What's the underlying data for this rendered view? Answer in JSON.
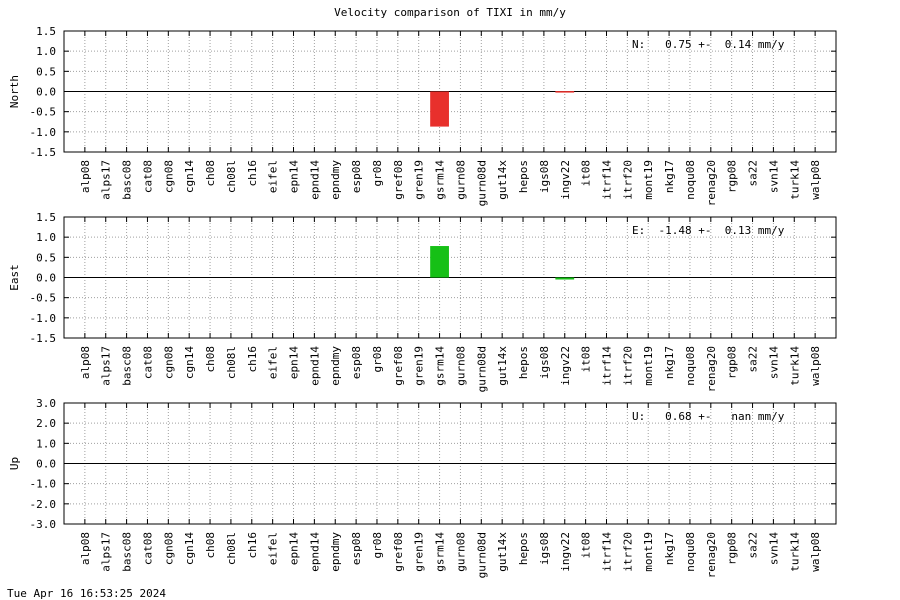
{
  "title": "Velocity comparison of TIXI in mm/y",
  "footer": "Tue Apr 16 16:53:25 2024",
  "chart_data": [
    {
      "type": "bar",
      "ylabel": "North",
      "annotation": "N:   0.75 +-  0.14 mm/y",
      "ylim": [
        -1.5,
        1.5
      ],
      "yticks": [
        1.5,
        1.0,
        0.5,
        0.0,
        -0.5,
        -1.0,
        -1.5
      ],
      "ytick_labels": [
        "1.5",
        "1.0",
        "0.5",
        "0.0",
        "-0.5",
        "-1.0",
        "-1.5"
      ],
      "grid": true,
      "color": "#e8302c",
      "categories": [
        "alp08",
        "alps17",
        "basc08",
        "cat08",
        "cgn08",
        "cgn14",
        "ch08",
        "ch08l",
        "ch16",
        "eifel",
        "epn14",
        "epnd14",
        "epndmy",
        "esp08",
        "gr08",
        "gref08",
        "gren19",
        "gsrm14",
        "gurn08",
        "gurn08d",
        "gut14x",
        "hepos",
        "igs08",
        "ingv22",
        "it08",
        "itrf14",
        "itrf20",
        "mont19",
        "nkg17",
        "noqu08",
        "renag20",
        "rgp08",
        "sa22",
        "svn14",
        "turk14",
        "walp08"
      ],
      "values": [
        null,
        null,
        null,
        null,
        null,
        null,
        null,
        null,
        null,
        null,
        null,
        null,
        null,
        null,
        null,
        null,
        null,
        -0.87,
        null,
        null,
        null,
        null,
        null,
        0.01,
        null,
        null,
        null,
        null,
        null,
        null,
        null,
        null,
        null,
        null,
        null,
        null
      ]
    },
    {
      "type": "bar",
      "ylabel": "East",
      "annotation": "E:  -1.48 +-  0.13 mm/y",
      "ylim": [
        -1.5,
        1.5
      ],
      "yticks": [
        1.5,
        1.0,
        0.5,
        0.0,
        -0.5,
        -1.0,
        -1.5
      ],
      "ytick_labels": [
        "1.5",
        "1.0",
        "0.5",
        "0.0",
        "-0.5",
        "-1.0",
        "-1.5"
      ],
      "grid": true,
      "color": "#16c016",
      "categories": [
        "alp08",
        "alps17",
        "basc08",
        "cat08",
        "cgn08",
        "cgn14",
        "ch08",
        "ch08l",
        "ch16",
        "eifel",
        "epn14",
        "epnd14",
        "epndmy",
        "esp08",
        "gr08",
        "gref08",
        "gren19",
        "gsrm14",
        "gurn08",
        "gurn08d",
        "gut14x",
        "hepos",
        "igs08",
        "ingv22",
        "it08",
        "itrf14",
        "itrf20",
        "mont19",
        "nkg17",
        "noqu08",
        "renag20",
        "rgp08",
        "sa22",
        "svn14",
        "turk14",
        "walp08"
      ],
      "values": [
        null,
        null,
        null,
        null,
        null,
        null,
        null,
        null,
        null,
        null,
        null,
        null,
        null,
        null,
        null,
        null,
        null,
        0.78,
        null,
        null,
        null,
        null,
        null,
        -0.05,
        null,
        null,
        null,
        null,
        null,
        null,
        null,
        null,
        null,
        null,
        null,
        null
      ]
    },
    {
      "type": "bar",
      "ylabel": "Up",
      "annotation": "U:   0.68 +-   nan mm/y",
      "ylim": [
        -3.0,
        3.0
      ],
      "yticks": [
        3.0,
        2.0,
        1.0,
        0.0,
        -1.0,
        -2.0,
        -3.0
      ],
      "ytick_labels": [
        "3.0",
        "2.0",
        "1.0",
        "0.0",
        "-1.0",
        "-2.0",
        "-3.0"
      ],
      "grid": true,
      "color": "#2a5bd7",
      "categories": [
        "alp08",
        "alps17",
        "basc08",
        "cat08",
        "cgn08",
        "cgn14",
        "ch08",
        "ch08l",
        "ch16",
        "eifel",
        "epn14",
        "epnd14",
        "epndmy",
        "esp08",
        "gr08",
        "gref08",
        "gren19",
        "gsrm14",
        "gurn08",
        "gurn08d",
        "gut14x",
        "hepos",
        "igs08",
        "ingv22",
        "it08",
        "itrf14",
        "itrf20",
        "mont19",
        "nkg17",
        "noqu08",
        "renag20",
        "rgp08",
        "sa22",
        "svn14",
        "turk14",
        "walp08"
      ],
      "values": [
        null,
        null,
        null,
        null,
        null,
        null,
        null,
        null,
        null,
        null,
        null,
        null,
        null,
        null,
        null,
        null,
        null,
        null,
        null,
        null,
        null,
        null,
        null,
        null,
        null,
        null,
        null,
        null,
        null,
        null,
        null,
        null,
        null,
        null,
        null,
        null
      ]
    }
  ]
}
